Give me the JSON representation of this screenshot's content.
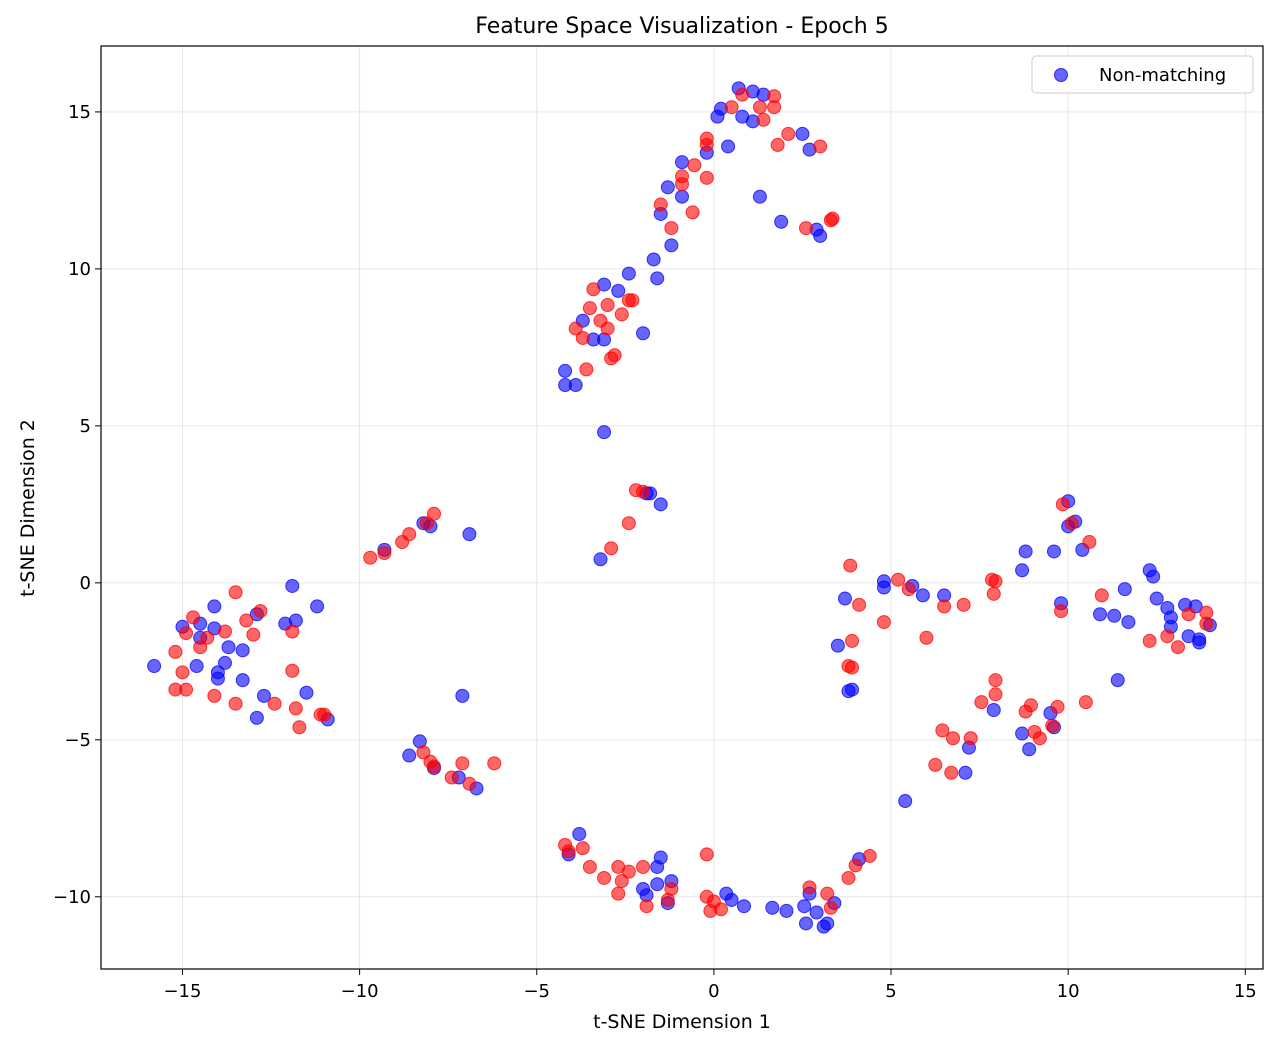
{
  "chart_data": {
    "type": "scatter",
    "title": "Feature Space Visualization - Epoch 5",
    "xlabel": "t-SNE Dimension 1",
    "ylabel": "t-SNE Dimension 2",
    "xlim": [
      -17.3,
      15.5
    ],
    "ylim": [
      -12.3,
      17.1
    ],
    "xticks": [
      -15,
      -10,
      -5,
      0,
      5,
      10,
      15
    ],
    "yticks": [
      -10,
      -5,
      0,
      5,
      10,
      15
    ],
    "xtick_labels": [
      "−15",
      "−10",
      "−5",
      "0",
      "5",
      "10",
      "15"
    ],
    "ytick_labels": [
      "−10",
      "−5",
      "0",
      "5",
      "10",
      "15"
    ],
    "grid": true,
    "legend_position": "top-right",
    "series": [
      {
        "name": "Non-matching",
        "color": "#0000ff",
        "points": [
          [
            -15.8,
            -2.65
          ],
          [
            -15.0,
            -1.4
          ],
          [
            -14.6,
            -2.65
          ],
          [
            -14.5,
            -1.3
          ],
          [
            -14.5,
            -1.75
          ],
          [
            -14.1,
            -0.75
          ],
          [
            -14.1,
            -1.45
          ],
          [
            -14.0,
            -2.85
          ],
          [
            -14.0,
            -3.05
          ],
          [
            -13.8,
            -2.55
          ],
          [
            -13.7,
            -2.05
          ],
          [
            -13.3,
            -2.15
          ],
          [
            -13.3,
            -3.1
          ],
          [
            -12.9,
            -4.3
          ],
          [
            -12.9,
            -1.0
          ],
          [
            -12.7,
            -3.6
          ],
          [
            -12.1,
            -1.3
          ],
          [
            -11.9,
            -0.1
          ],
          [
            -11.8,
            -1.2
          ],
          [
            -11.5,
            -3.5
          ],
          [
            -11.2,
            -0.75
          ],
          [
            -10.9,
            -4.35
          ],
          [
            -9.3,
            1.05
          ],
          [
            -8.2,
            1.9
          ],
          [
            -8.0,
            1.8
          ],
          [
            -6.9,
            1.55
          ],
          [
            -7.1,
            -3.6
          ],
          [
            -8.3,
            -5.05
          ],
          [
            -8.6,
            -5.5
          ],
          [
            -7.9,
            -5.9
          ],
          [
            -7.2,
            -6.2
          ],
          [
            -6.7,
            -6.55
          ],
          [
            -4.2,
            6.75
          ],
          [
            -4.2,
            6.3
          ],
          [
            -3.9,
            6.3
          ],
          [
            -3.7,
            8.35
          ],
          [
            -3.4,
            7.75
          ],
          [
            -3.1,
            9.5
          ],
          [
            -3.1,
            7.75
          ],
          [
            -2.7,
            9.3
          ],
          [
            -2.4,
            9.85
          ],
          [
            -2.0,
            7.95
          ],
          [
            -1.7,
            10.3
          ],
          [
            -1.6,
            9.7
          ],
          [
            -1.5,
            11.75
          ],
          [
            -1.3,
            12.6
          ],
          [
            -1.2,
            10.75
          ],
          [
            -0.9,
            12.3
          ],
          [
            -0.9,
            13.4
          ],
          [
            -0.2,
            13.7
          ],
          [
            0.1,
            14.85
          ],
          [
            0.2,
            15.1
          ],
          [
            0.4,
            13.9
          ],
          [
            0.7,
            15.75
          ],
          [
            0.8,
            14.85
          ],
          [
            1.1,
            15.65
          ],
          [
            1.1,
            14.7
          ],
          [
            1.4,
            15.55
          ],
          [
            1.3,
            12.3
          ],
          [
            1.9,
            11.5
          ],
          [
            2.5,
            14.3
          ],
          [
            2.7,
            13.8
          ],
          [
            2.9,
            11.25
          ],
          [
            3.0,
            11.05
          ],
          [
            -3.1,
            4.8
          ],
          [
            -3.2,
            0.75
          ],
          [
            -1.9,
            2.85
          ],
          [
            -1.8,
            2.85
          ],
          [
            -1.5,
            2.5
          ],
          [
            -4.1,
            -8.65
          ],
          [
            -3.8,
            -8.0
          ],
          [
            -2.0,
            -9.75
          ],
          [
            -1.9,
            -9.95
          ],
          [
            -1.6,
            -9.05
          ],
          [
            -1.5,
            -8.75
          ],
          [
            -1.6,
            -9.6
          ],
          [
            -1.3,
            -10.2
          ],
          [
            -1.2,
            -9.5
          ],
          [
            0.35,
            -9.9
          ],
          [
            0.5,
            -10.1
          ],
          [
            0.85,
            -10.3
          ],
          [
            1.65,
            -10.35
          ],
          [
            2.05,
            -10.45
          ],
          [
            2.55,
            -10.3
          ],
          [
            2.6,
            -10.85
          ],
          [
            2.7,
            -9.9
          ],
          [
            2.9,
            -10.5
          ],
          [
            3.1,
            -10.95
          ],
          [
            3.2,
            -10.85
          ],
          [
            3.4,
            -10.2
          ],
          [
            3.5,
            -2.0
          ],
          [
            3.7,
            -0.5
          ],
          [
            3.8,
            -3.45
          ],
          [
            3.9,
            -3.4
          ],
          [
            4.1,
            -8.8
          ],
          [
            4.8,
            0.05
          ],
          [
            4.8,
            -0.15
          ],
          [
            5.6,
            -0.1
          ],
          [
            5.9,
            -0.4
          ],
          [
            6.5,
            -0.4
          ],
          [
            5.4,
            -6.95
          ],
          [
            7.1,
            -6.05
          ],
          [
            7.2,
            -5.25
          ],
          [
            7.9,
            -4.05
          ],
          [
            8.7,
            0.4
          ],
          [
            8.8,
            1.0
          ],
          [
            8.7,
            -4.8
          ],
          [
            8.9,
            -5.3
          ],
          [
            9.5,
            -4.15
          ],
          [
            9.6,
            -4.6
          ],
          [
            9.6,
            1.0
          ],
          [
            9.8,
            -0.65
          ],
          [
            10.0,
            2.6
          ],
          [
            10.0,
            1.8
          ],
          [
            10.2,
            1.95
          ],
          [
            10.4,
            1.05
          ],
          [
            10.9,
            -1.0
          ],
          [
            11.3,
            -1.05
          ],
          [
            11.6,
            -0.2
          ],
          [
            11.7,
            -1.25
          ],
          [
            11.4,
            -3.1
          ],
          [
            12.3,
            0.4
          ],
          [
            12.4,
            0.2
          ],
          [
            12.5,
            -0.5
          ],
          [
            12.8,
            -0.8
          ],
          [
            12.9,
            -1.1
          ],
          [
            12.9,
            -1.4
          ],
          [
            13.3,
            -0.7
          ],
          [
            13.4,
            -1.7
          ],
          [
            13.6,
            -0.75
          ],
          [
            13.7,
            -1.8
          ],
          [
            13.7,
            -1.9
          ],
          [
            14.0,
            -1.35
          ]
        ]
      },
      {
        "name": "",
        "color": "#ff0000",
        "points": [
          [
            -15.2,
            -3.4
          ],
          [
            -15.2,
            -2.2
          ],
          [
            -15.0,
            -2.85
          ],
          [
            -14.9,
            -3.4
          ],
          [
            -14.9,
            -1.6
          ],
          [
            -14.7,
            -1.1
          ],
          [
            -14.5,
            -2.05
          ],
          [
            -14.3,
            -1.75
          ],
          [
            -14.1,
            -3.6
          ],
          [
            -13.8,
            -1.55
          ],
          [
            -13.5,
            -0.3
          ],
          [
            -13.5,
            -3.85
          ],
          [
            -13.2,
            -1.2
          ],
          [
            -13.0,
            -1.65
          ],
          [
            -12.8,
            -0.9
          ],
          [
            -12.4,
            -3.85
          ],
          [
            -11.9,
            -1.55
          ],
          [
            -11.9,
            -2.8
          ],
          [
            -11.8,
            -4.0
          ],
          [
            -11.7,
            -4.6
          ],
          [
            -11.1,
            -4.2
          ],
          [
            -11.0,
            -4.2
          ],
          [
            -9.7,
            0.8
          ],
          [
            -9.3,
            0.95
          ],
          [
            -8.8,
            1.3
          ],
          [
            -8.6,
            1.55
          ],
          [
            -8.1,
            1.9
          ],
          [
            -7.9,
            2.2
          ],
          [
            -8.2,
            -5.4
          ],
          [
            -8.0,
            -5.7
          ],
          [
            -7.9,
            -5.85
          ],
          [
            -7.4,
            -6.2
          ],
          [
            -7.1,
            -5.75
          ],
          [
            -6.9,
            -6.4
          ],
          [
            -6.2,
            -5.75
          ],
          [
            -3.9,
            8.1
          ],
          [
            -3.7,
            7.8
          ],
          [
            -3.6,
            6.8
          ],
          [
            -3.5,
            8.75
          ],
          [
            -3.4,
            9.35
          ],
          [
            -3.2,
            8.35
          ],
          [
            -3.0,
            8.85
          ],
          [
            -3.0,
            8.1
          ],
          [
            -2.9,
            7.15
          ],
          [
            -2.8,
            7.25
          ],
          [
            -2.6,
            8.55
          ],
          [
            -2.4,
            9.0
          ],
          [
            -2.3,
            9.0
          ],
          [
            -1.5,
            12.05
          ],
          [
            -1.2,
            11.3
          ],
          [
            -0.9,
            12.95
          ],
          [
            -0.9,
            12.7
          ],
          [
            -0.6,
            11.8
          ],
          [
            -0.55,
            13.3
          ],
          [
            -0.2,
            13.95
          ],
          [
            -0.2,
            14.15
          ],
          [
            -0.2,
            12.9
          ],
          [
            0.5,
            15.15
          ],
          [
            0.8,
            15.55
          ],
          [
            1.3,
            15.15
          ],
          [
            1.4,
            14.75
          ],
          [
            1.7,
            15.5
          ],
          [
            1.7,
            15.15
          ],
          [
            1.8,
            13.95
          ],
          [
            2.1,
            14.3
          ],
          [
            2.6,
            11.3
          ],
          [
            3.0,
            13.9
          ],
          [
            3.3,
            11.55
          ],
          [
            3.35,
            11.6
          ],
          [
            -2.2,
            2.95
          ],
          [
            -2.0,
            2.9
          ],
          [
            -2.4,
            1.9
          ],
          [
            -2.9,
            1.1
          ],
          [
            -4.2,
            -8.35
          ],
          [
            -4.1,
            -8.55
          ],
          [
            -3.7,
            -8.45
          ],
          [
            -3.5,
            -9.05
          ],
          [
            -3.1,
            -9.4
          ],
          [
            -2.7,
            -9.05
          ],
          [
            -2.7,
            -9.9
          ],
          [
            -2.6,
            -9.5
          ],
          [
            -2.4,
            -9.2
          ],
          [
            -2.0,
            -9.05
          ],
          [
            -1.9,
            -10.3
          ],
          [
            -1.3,
            -10.1
          ],
          [
            -1.2,
            -9.75
          ],
          [
            -0.2,
            -8.65
          ],
          [
            -0.2,
            -10.0
          ],
          [
            -0.1,
            -10.45
          ],
          [
            0.0,
            -10.15
          ],
          [
            0.2,
            -10.4
          ],
          [
            2.7,
            -9.7
          ],
          [
            3.2,
            -9.9
          ],
          [
            3.3,
            -10.35
          ],
          [
            3.8,
            -9.4
          ],
          [
            4.0,
            -9.0
          ],
          [
            4.4,
            -8.7
          ],
          [
            3.8,
            -2.65
          ],
          [
            3.9,
            -2.7
          ],
          [
            3.9,
            -1.85
          ],
          [
            3.85,
            0.55
          ],
          [
            4.1,
            -0.7
          ],
          [
            4.8,
            -1.25
          ],
          [
            5.2,
            0.1
          ],
          [
            5.5,
            -0.2
          ],
          [
            6.0,
            -1.75
          ],
          [
            6.25,
            -5.8
          ],
          [
            6.45,
            -4.7
          ],
          [
            6.5,
            -0.75
          ],
          [
            6.7,
            -6.05
          ],
          [
            6.75,
            -4.95
          ],
          [
            7.05,
            -0.7
          ],
          [
            7.25,
            -4.95
          ],
          [
            7.55,
            -3.8
          ],
          [
            7.85,
            0.1
          ],
          [
            7.9,
            -0.35
          ],
          [
            7.95,
            0.05
          ],
          [
            7.95,
            -3.55
          ],
          [
            7.95,
            -3.1
          ],
          [
            8.8,
            -4.1
          ],
          [
            8.95,
            -3.9
          ],
          [
            9.05,
            -4.75
          ],
          [
            9.2,
            -4.95
          ],
          [
            9.55,
            -4.55
          ],
          [
            9.7,
            -3.95
          ],
          [
            9.8,
            -0.9
          ],
          [
            9.85,
            2.5
          ],
          [
            10.1,
            1.9
          ],
          [
            10.6,
            1.3
          ],
          [
            10.5,
            -3.8
          ],
          [
            10.95,
            -0.4
          ],
          [
            12.3,
            -1.85
          ],
          [
            12.8,
            -1.7
          ],
          [
            13.1,
            -2.05
          ],
          [
            13.4,
            -1.0
          ],
          [
            13.9,
            -1.3
          ],
          [
            13.9,
            -0.95
          ]
        ]
      }
    ]
  }
}
